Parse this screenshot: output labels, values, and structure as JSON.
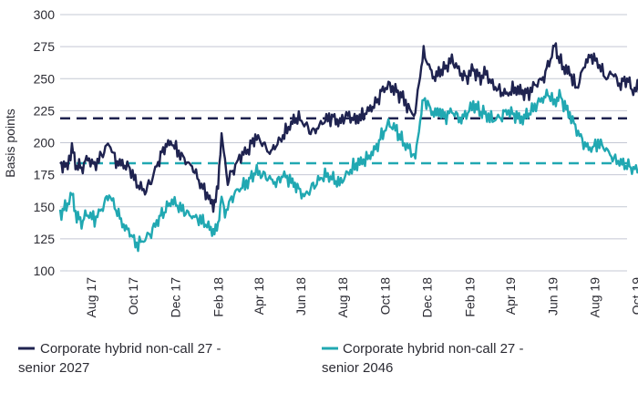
{
  "chart_data": {
    "type": "line",
    "title": "",
    "xlabel": "",
    "ylabel": "Basis points",
    "ylim": [
      100,
      300
    ],
    "yticks": [
      100,
      125,
      150,
      175,
      200,
      225,
      250,
      275,
      300
    ],
    "grid": "horizontal",
    "legend_position": "bottom",
    "x_start": "2017-07",
    "x_end": "2019-10",
    "x_tick_labels": [
      "Aug 17",
      "Oct 17",
      "Dec 17",
      "Feb 18",
      "Apr 18",
      "Jun 18",
      "Aug 18",
      "Oct 18",
      "Dec 18",
      "Feb 19",
      "Apr 19",
      "Jun 19",
      "Aug 19",
      "Oct 19"
    ],
    "x_tick_months": [
      "2017-08",
      "2017-10",
      "2017-12",
      "2018-02",
      "2018-04",
      "2018-06",
      "2018-08",
      "2018-10",
      "2018-12",
      "2019-02",
      "2019-04",
      "2019-06",
      "2019-08",
      "2019-10"
    ],
    "series": [
      {
        "name_lines": [
          "Corporate hybrid non-call 27 -",
          "senior 2027"
        ],
        "color": "#1f2350",
        "average": 219,
        "points": [
          [
            "2017-07-01",
            185
          ],
          [
            "2017-07-10",
            180
          ],
          [
            "2017-07-18",
            195
          ],
          [
            "2017-07-25",
            182
          ],
          [
            "2017-08-01",
            180
          ],
          [
            "2017-08-10",
            188
          ],
          [
            "2017-08-20",
            182
          ],
          [
            "2017-09-01",
            192
          ],
          [
            "2017-09-10",
            200
          ],
          [
            "2017-09-20",
            185
          ],
          [
            "2017-10-01",
            183
          ],
          [
            "2017-10-10",
            180
          ],
          [
            "2017-10-20",
            168
          ],
          [
            "2017-11-01",
            162
          ],
          [
            "2017-11-10",
            170
          ],
          [
            "2017-11-20",
            185
          ],
          [
            "2017-12-01",
            198
          ],
          [
            "2017-12-10",
            200
          ],
          [
            "2017-12-20",
            192
          ],
          [
            "2018-01-01",
            185
          ],
          [
            "2018-01-10",
            180
          ],
          [
            "2018-01-20",
            168
          ],
          [
            "2018-02-01",
            158
          ],
          [
            "2018-02-08",
            150
          ],
          [
            "2018-02-15",
            165
          ],
          [
            "2018-02-20",
            208
          ],
          [
            "2018-02-25",
            185
          ],
          [
            "2018-03-01",
            170
          ],
          [
            "2018-03-10",
            180
          ],
          [
            "2018-03-20",
            190
          ],
          [
            "2018-04-01",
            195
          ],
          [
            "2018-04-10",
            205
          ],
          [
            "2018-04-20",
            200
          ],
          [
            "2018-05-01",
            192
          ],
          [
            "2018-05-10",
            198
          ],
          [
            "2018-05-20",
            205
          ],
          [
            "2018-06-01",
            215
          ],
          [
            "2018-06-10",
            220
          ],
          [
            "2018-06-20",
            215
          ],
          [
            "2018-07-01",
            208
          ],
          [
            "2018-07-10",
            212
          ],
          [
            "2018-07-20",
            218
          ],
          [
            "2018-08-01",
            220
          ],
          [
            "2018-08-10",
            215
          ],
          [
            "2018-08-20",
            222
          ],
          [
            "2018-09-01",
            218
          ],
          [
            "2018-09-10",
            220
          ],
          [
            "2018-09-20",
            225
          ],
          [
            "2018-10-01",
            230
          ],
          [
            "2018-10-10",
            240
          ],
          [
            "2018-10-20",
            245
          ],
          [
            "2018-11-01",
            240
          ],
          [
            "2018-11-10",
            235
          ],
          [
            "2018-11-20",
            225
          ],
          [
            "2018-11-28",
            222
          ],
          [
            "2018-12-05",
            255
          ],
          [
            "2018-12-10",
            270
          ],
          [
            "2018-12-18",
            260
          ],
          [
            "2018-12-25",
            250
          ],
          [
            "2019-01-01",
            255
          ],
          [
            "2019-01-10",
            258
          ],
          [
            "2019-01-20",
            265
          ],
          [
            "2019-02-01",
            255
          ],
          [
            "2019-02-10",
            250
          ],
          [
            "2019-02-20",
            258
          ],
          [
            "2019-03-01",
            250
          ],
          [
            "2019-03-10",
            255
          ],
          [
            "2019-03-20",
            245
          ],
          [
            "2019-04-01",
            240
          ],
          [
            "2019-04-10",
            238
          ],
          [
            "2019-04-20",
            242
          ],
          [
            "2019-05-01",
            240
          ],
          [
            "2019-05-10",
            238
          ],
          [
            "2019-05-20",
            245
          ],
          [
            "2019-06-01",
            250
          ],
          [
            "2019-06-10",
            262
          ],
          [
            "2019-06-18",
            276
          ],
          [
            "2019-06-25",
            265
          ],
          [
            "2019-07-01",
            258
          ],
          [
            "2019-07-10",
            255
          ],
          [
            "2019-07-20",
            242
          ],
          [
            "2019-08-01",
            262
          ],
          [
            "2019-08-10",
            268
          ],
          [
            "2019-08-20",
            262
          ],
          [
            "2019-09-01",
            250
          ],
          [
            "2019-09-10",
            255
          ],
          [
            "2019-09-20",
            245
          ],
          [
            "2019-10-01",
            250
          ],
          [
            "2019-10-10",
            240
          ],
          [
            "2019-10-20",
            245
          ]
        ]
      },
      {
        "name_lines": [
          "Corporate hybrid non-call 27 -",
          "senior 2046"
        ],
        "color": "#21a8b2",
        "average": 184,
        "points": [
          [
            "2017-07-01",
            145
          ],
          [
            "2017-07-10",
            150
          ],
          [
            "2017-07-18",
            160
          ],
          [
            "2017-07-25",
            142
          ],
          [
            "2017-08-01",
            138
          ],
          [
            "2017-08-10",
            145
          ],
          [
            "2017-08-20",
            140
          ],
          [
            "2017-09-01",
            150
          ],
          [
            "2017-09-10",
            160
          ],
          [
            "2017-09-20",
            148
          ],
          [
            "2017-10-01",
            135
          ],
          [
            "2017-10-10",
            130
          ],
          [
            "2017-10-20",
            120
          ],
          [
            "2017-11-01",
            125
          ],
          [
            "2017-11-10",
            130
          ],
          [
            "2017-11-20",
            140
          ],
          [
            "2017-12-01",
            148
          ],
          [
            "2017-12-10",
            155
          ],
          [
            "2017-12-20",
            150
          ],
          [
            "2018-01-01",
            145
          ],
          [
            "2018-01-10",
            142
          ],
          [
            "2018-01-20",
            140
          ],
          [
            "2018-02-01",
            135
          ],
          [
            "2018-02-08",
            130
          ],
          [
            "2018-02-15",
            135
          ],
          [
            "2018-02-20",
            158
          ],
          [
            "2018-02-25",
            145
          ],
          [
            "2018-03-01",
            150
          ],
          [
            "2018-03-10",
            160
          ],
          [
            "2018-03-20",
            165
          ],
          [
            "2018-04-01",
            170
          ],
          [
            "2018-04-10",
            178
          ],
          [
            "2018-04-20",
            175
          ],
          [
            "2018-05-01",
            172
          ],
          [
            "2018-05-10",
            168
          ],
          [
            "2018-05-20",
            175
          ],
          [
            "2018-06-01",
            170
          ],
          [
            "2018-06-10",
            165
          ],
          [
            "2018-06-20",
            158
          ],
          [
            "2018-07-01",
            165
          ],
          [
            "2018-07-10",
            170
          ],
          [
            "2018-07-20",
            175
          ],
          [
            "2018-08-01",
            172
          ],
          [
            "2018-08-10",
            168
          ],
          [
            "2018-08-20",
            175
          ],
          [
            "2018-09-01",
            182
          ],
          [
            "2018-09-10",
            185
          ],
          [
            "2018-09-20",
            188
          ],
          [
            "2018-10-01",
            195
          ],
          [
            "2018-10-10",
            205
          ],
          [
            "2018-10-20",
            215
          ],
          [
            "2018-11-01",
            210
          ],
          [
            "2018-11-10",
            200
          ],
          [
            "2018-11-20",
            195
          ],
          [
            "2018-11-28",
            188
          ],
          [
            "2018-12-05",
            218
          ],
          [
            "2018-12-10",
            235
          ],
          [
            "2018-12-18",
            228
          ],
          [
            "2018-12-25",
            222
          ],
          [
            "2019-01-01",
            225
          ],
          [
            "2019-01-10",
            220
          ],
          [
            "2019-01-20",
            225
          ],
          [
            "2019-02-01",
            218
          ],
          [
            "2019-02-10",
            222
          ],
          [
            "2019-02-20",
            230
          ],
          [
            "2019-03-01",
            225
          ],
          [
            "2019-03-10",
            222
          ],
          [
            "2019-03-20",
            218
          ],
          [
            "2019-04-01",
            220
          ],
          [
            "2019-04-10",
            225
          ],
          [
            "2019-04-20",
            222
          ],
          [
            "2019-05-01",
            218
          ],
          [
            "2019-05-10",
            222
          ],
          [
            "2019-05-20",
            228
          ],
          [
            "2019-06-01",
            235
          ],
          [
            "2019-06-10",
            238
          ],
          [
            "2019-06-18",
            230
          ],
          [
            "2019-06-25",
            238
          ],
          [
            "2019-07-01",
            230
          ],
          [
            "2019-07-10",
            222
          ],
          [
            "2019-07-20",
            210
          ],
          [
            "2019-08-01",
            198
          ],
          [
            "2019-08-10",
            195
          ],
          [
            "2019-08-20",
            200
          ],
          [
            "2019-09-01",
            195
          ],
          [
            "2019-09-10",
            188
          ],
          [
            "2019-09-20",
            185
          ],
          [
            "2019-10-01",
            182
          ],
          [
            "2019-10-10",
            180
          ],
          [
            "2019-10-20",
            178
          ]
        ]
      }
    ]
  }
}
